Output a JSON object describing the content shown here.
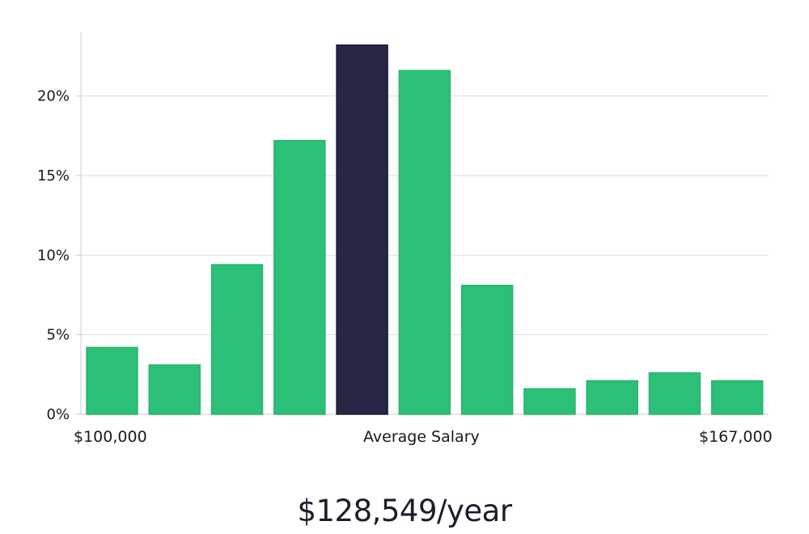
{
  "chart_data": {
    "type": "bar",
    "title": "",
    "xlabel": "Average Salary",
    "ylabel": "",
    "x_start_label": "$100,000",
    "x_end_label": "$167,000",
    "ylim": [
      0,
      24
    ],
    "yticks": [
      0,
      5,
      10,
      15,
      20
    ],
    "ytick_labels": [
      "0%",
      "5%",
      "10%",
      "15%",
      "20%"
    ],
    "grid": true,
    "values": [
      4.2,
      3.1,
      9.4,
      17.2,
      23.2,
      21.6,
      8.1,
      1.6,
      2.1,
      2.6,
      2.1
    ],
    "highlight_index": 4,
    "colors": {
      "bar": "#2bbf77",
      "highlight": "#282645",
      "grid": "#dddddd",
      "axis": "#cccccc",
      "text": "#1a1a1a"
    }
  },
  "summary": {
    "salary_text": "$128,549/year"
  }
}
